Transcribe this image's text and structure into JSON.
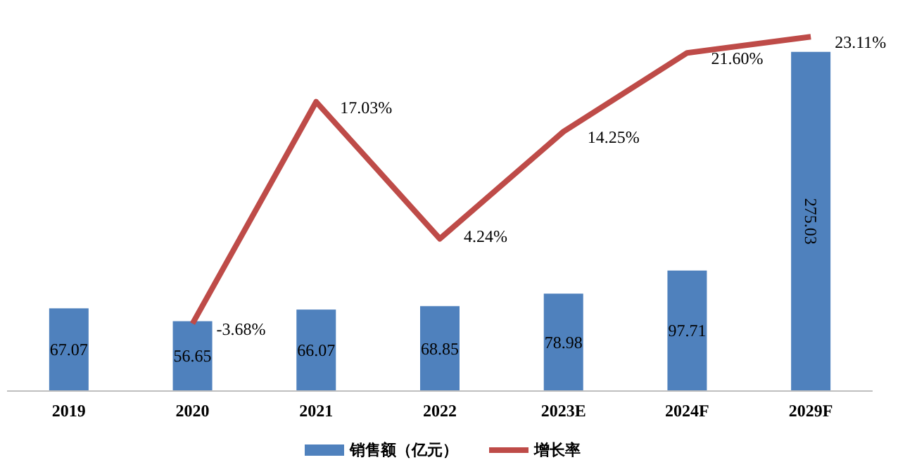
{
  "chart_data": {
    "type": "bar",
    "categories": [
      "2019",
      "2020",
      "2021",
      "2022",
      "2023E",
      "2024F",
      "2029F"
    ],
    "series": [
      {
        "name": "销售额（亿元）",
        "color": "#4f81bd",
        "values": [
          67.07,
          56.65,
          66.07,
          68.85,
          78.98,
          97.71,
          275.03
        ],
        "value_labels": [
          "67.07",
          "56.65",
          "66.07",
          "68.85",
          "78.98",
          "97.71",
          "275.03"
        ]
      },
      {
        "name": "增长率",
        "type": "line",
        "axis": "y2",
        "color": "#be4b48",
        "values": [
          null,
          -3.68,
          17.03,
          4.24,
          14.25,
          21.6,
          23.11
        ],
        "value_labels": [
          null,
          "-3.68%",
          "17.03%",
          "4.24%",
          "14.25%",
          "21.60%",
          "23.11%"
        ]
      }
    ],
    "tick_labels": "x",
    "legend": "bottom"
  }
}
